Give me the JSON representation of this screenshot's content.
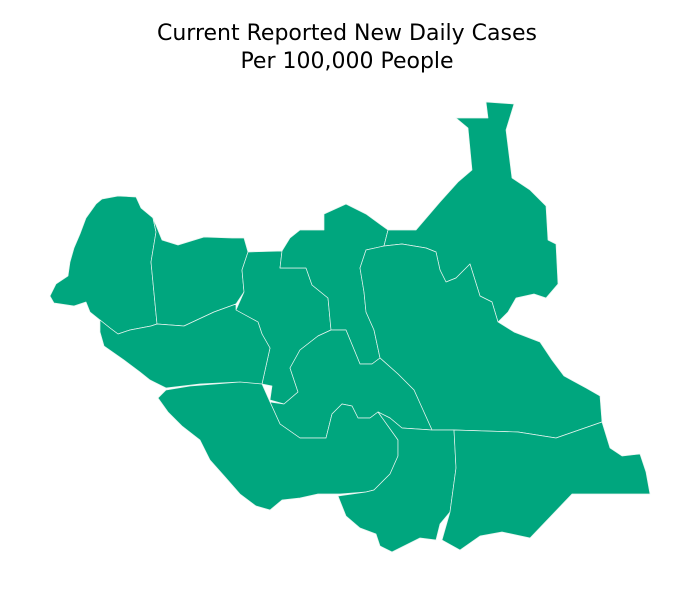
{
  "title": {
    "line1": "Current Reported New Daily Cases",
    "line2": "Per 100,000 People"
  },
  "map": {
    "fill_color": "#00a67e",
    "border_color": "#e6f4ef"
  }
}
